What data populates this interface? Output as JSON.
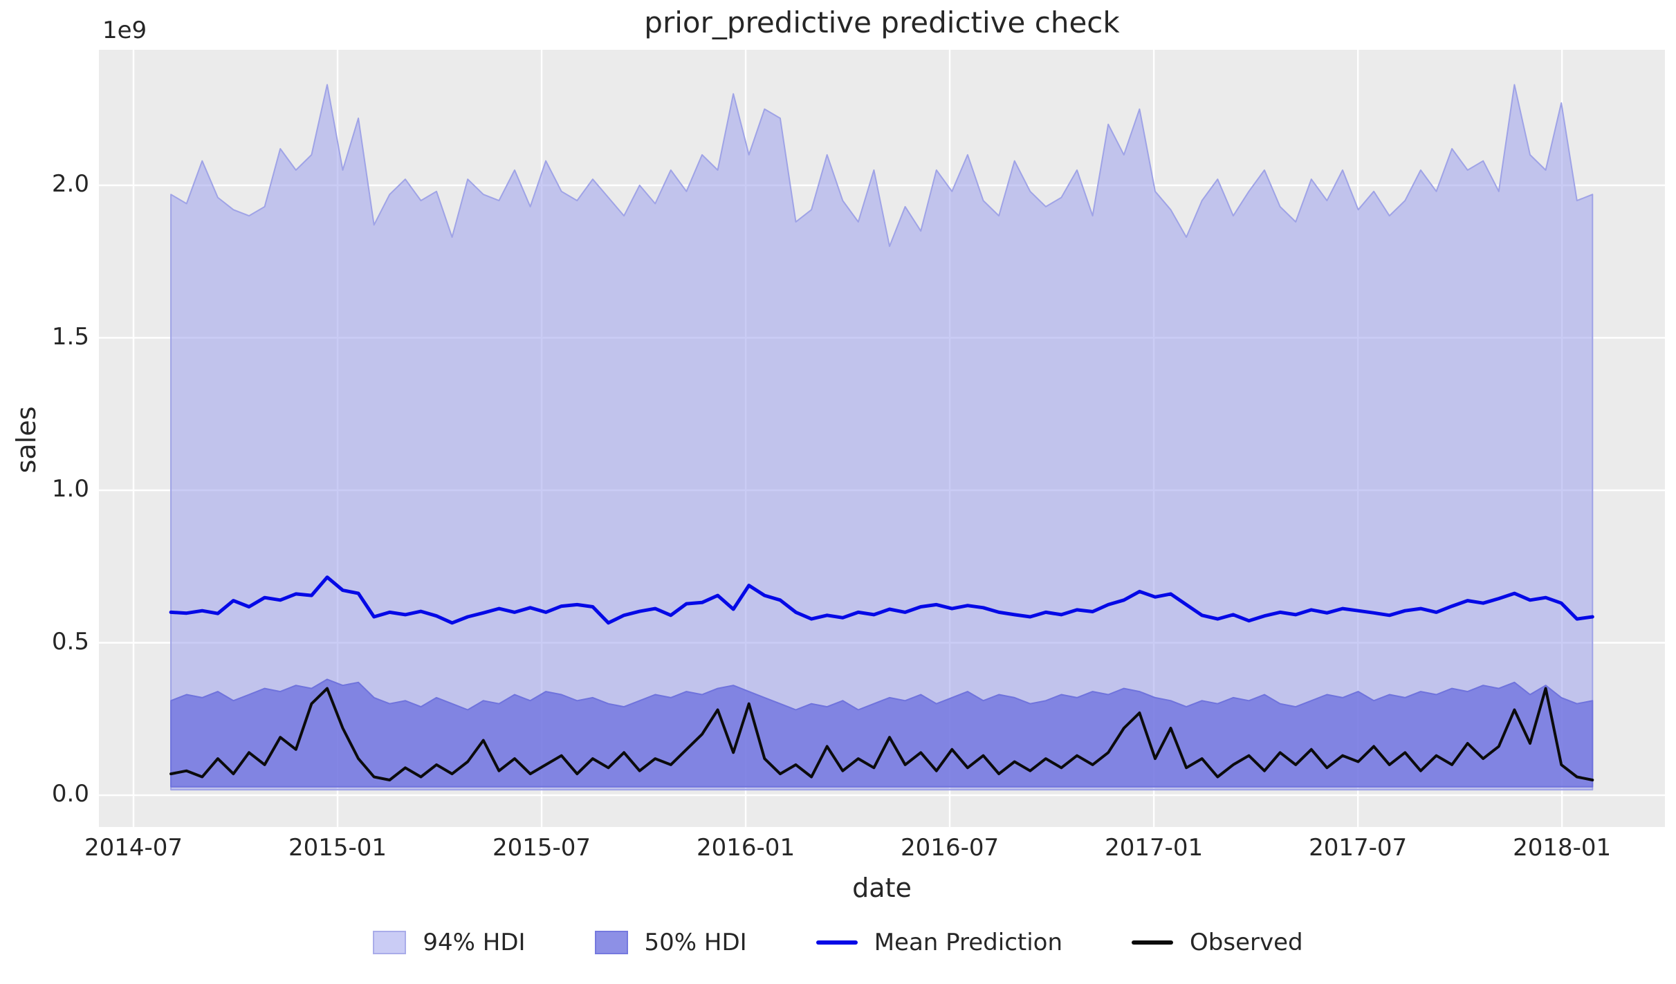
{
  "figure": {
    "title": "prior_predictive predictive check"
  },
  "axes": {
    "offset_text": "1e9",
    "ylabel": "sales",
    "xlabel": "date",
    "y_ticks": [
      "0.0",
      "0.5",
      "1.0",
      "1.5",
      "2.0"
    ],
    "x_ticks": [
      "2014-07",
      "2015-01",
      "2015-07",
      "2016-01",
      "2016-07",
      "2017-01",
      "2017-07",
      "2018-01"
    ]
  },
  "legend": {
    "items": [
      {
        "label": "94% HDI",
        "swatch": "patch",
        "fill": "rgba(159,163,237,0.55)",
        "edge": "#a9ace9"
      },
      {
        "label": "50% HDI",
        "swatch": "patch",
        "fill": "rgba(112,116,224,0.8)",
        "edge": "#7579de"
      },
      {
        "label": "Mean Prediction",
        "swatch": "line",
        "color": "#0509e6"
      },
      {
        "label": "Observed",
        "swatch": "line",
        "color": "#0b0b0b"
      }
    ]
  },
  "colors": {
    "figure_bg": "#ffffff",
    "axes_bg": "#ebebeb",
    "grid": "#ffffff",
    "hdi94_fill": "rgba(159,163,237,0.55)",
    "hdi94_edge": "#9fa3e6",
    "hdi50_fill": "rgba(112,116,224,0.8)",
    "hdi50_edge": "#6f73dc",
    "mean_line": "#0509e6",
    "observed_line": "#0b0b0b",
    "text": "#262626"
  },
  "chart_data": {
    "type": "area",
    "title": "prior_predictive predictive check",
    "xlabel": "date",
    "ylabel": "sales",
    "y_unit": "1e9",
    "ylim": [
      -0.1,
      2.44
    ],
    "y_ticks": [
      0.0,
      0.5,
      1.0,
      1.5,
      2.0
    ],
    "x_tick_labels": [
      "2014-07",
      "2015-01",
      "2015-07",
      "2016-01",
      "2016-07",
      "2017-01",
      "2017-07",
      "2018-01"
    ],
    "x_tick_months_from_2014_07": [
      0,
      6,
      12,
      18,
      24,
      30,
      36,
      42
    ],
    "x_start_date": "2014-08-03",
    "x_step_days": 14,
    "n_points": 92,
    "grid": true,
    "legend_position": "lower center",
    "series": [
      {
        "name": "94% HDI upper",
        "values": [
          1.97,
          1.94,
          2.08,
          1.96,
          1.92,
          1.9,
          1.93,
          2.12,
          2.05,
          2.1,
          2.33,
          2.05,
          2.22,
          1.87,
          1.97,
          2.02,
          1.95,
          1.98,
          1.83,
          2.02,
          1.97,
          1.95,
          2.05,
          1.93,
          2.08,
          1.98,
          1.95,
          2.02,
          1.96,
          1.9,
          2.0,
          1.94,
          2.05,
          1.98,
          2.1,
          2.05,
          2.3,
          2.1,
          2.25,
          2.22,
          1.88,
          1.92,
          2.1,
          1.95,
          1.88,
          2.05,
          1.8,
          1.93,
          1.85,
          2.05,
          1.98,
          2.1,
          1.95,
          1.9,
          2.08,
          1.98,
          1.93,
          1.96,
          2.05,
          1.9,
          2.2,
          2.1,
          2.25,
          1.98,
          1.92,
          1.83,
          1.95,
          2.02,
          1.9,
          1.98,
          2.05,
          1.93,
          1.88,
          2.02,
          1.95,
          2.05,
          1.92,
          1.98,
          1.9,
          1.95,
          2.05,
          1.98,
          2.12,
          2.05,
          2.08,
          1.98,
          2.33,
          2.1,
          2.05,
          2.27,
          1.95,
          1.97
        ]
      },
      {
        "name": "94% HDI lower",
        "constant": 0.018
      },
      {
        "name": "50% HDI upper",
        "values": [
          0.31,
          0.33,
          0.32,
          0.34,
          0.31,
          0.33,
          0.35,
          0.34,
          0.36,
          0.35,
          0.38,
          0.36,
          0.37,
          0.32,
          0.3,
          0.31,
          0.29,
          0.32,
          0.3,
          0.28,
          0.31,
          0.3,
          0.33,
          0.31,
          0.34,
          0.33,
          0.31,
          0.32,
          0.3,
          0.29,
          0.31,
          0.33,
          0.32,
          0.34,
          0.33,
          0.35,
          0.36,
          0.34,
          0.32,
          0.3,
          0.28,
          0.3,
          0.29,
          0.31,
          0.28,
          0.3,
          0.32,
          0.31,
          0.33,
          0.3,
          0.32,
          0.34,
          0.31,
          0.33,
          0.32,
          0.3,
          0.31,
          0.33,
          0.32,
          0.34,
          0.33,
          0.35,
          0.34,
          0.32,
          0.31,
          0.29,
          0.31,
          0.3,
          0.32,
          0.31,
          0.33,
          0.3,
          0.29,
          0.31,
          0.33,
          0.32,
          0.34,
          0.31,
          0.33,
          0.32,
          0.34,
          0.33,
          0.35,
          0.34,
          0.36,
          0.35,
          0.37,
          0.33,
          0.36,
          0.32,
          0.3,
          0.31
        ]
      },
      {
        "name": "50% HDI lower",
        "constant": 0.028
      },
      {
        "name": "Mean Prediction",
        "values": [
          0.6,
          0.597,
          0.605,
          0.596,
          0.638,
          0.618,
          0.648,
          0.64,
          0.66,
          0.655,
          0.715,
          0.672,
          0.662,
          0.585,
          0.6,
          0.592,
          0.603,
          0.588,
          0.565,
          0.585,
          0.598,
          0.612,
          0.6,
          0.615,
          0.6,
          0.62,
          0.625,
          0.618,
          0.565,
          0.59,
          0.603,
          0.612,
          0.59,
          0.628,
          0.632,
          0.655,
          0.61,
          0.688,
          0.655,
          0.64,
          0.6,
          0.578,
          0.59,
          0.582,
          0.6,
          0.592,
          0.61,
          0.6,
          0.618,
          0.625,
          0.612,
          0.622,
          0.615,
          0.6,
          0.592,
          0.585,
          0.6,
          0.592,
          0.608,
          0.602,
          0.625,
          0.64,
          0.668,
          0.65,
          0.66,
          0.625,
          0.59,
          0.578,
          0.592,
          0.572,
          0.588,
          0.6,
          0.592,
          0.608,
          0.598,
          0.612,
          0.605,
          0.598,
          0.59,
          0.605,
          0.612,
          0.6,
          0.62,
          0.638,
          0.63,
          0.645,
          0.662,
          0.64,
          0.648,
          0.63,
          0.578,
          0.585
        ]
      },
      {
        "name": "Observed",
        "values": [
          0.07,
          0.08,
          0.06,
          0.12,
          0.07,
          0.14,
          0.1,
          0.19,
          0.15,
          0.3,
          0.35,
          0.22,
          0.12,
          0.06,
          0.05,
          0.09,
          0.06,
          0.1,
          0.07,
          0.11,
          0.18,
          0.08,
          0.12,
          0.07,
          0.1,
          0.13,
          0.07,
          0.12,
          0.09,
          0.14,
          0.08,
          0.12,
          0.1,
          0.15,
          0.2,
          0.28,
          0.14,
          0.3,
          0.12,
          0.07,
          0.1,
          0.06,
          0.16,
          0.08,
          0.12,
          0.09,
          0.19,
          0.1,
          0.14,
          0.08,
          0.15,
          0.09,
          0.13,
          0.07,
          0.11,
          0.08,
          0.12,
          0.09,
          0.13,
          0.1,
          0.14,
          0.22,
          0.27,
          0.12,
          0.22,
          0.09,
          0.12,
          0.06,
          0.1,
          0.13,
          0.08,
          0.14,
          0.1,
          0.15,
          0.09,
          0.13,
          0.11,
          0.16,
          0.1,
          0.14,
          0.08,
          0.13,
          0.1,
          0.17,
          0.12,
          0.16,
          0.28,
          0.17,
          0.35,
          0.1,
          0.06,
          0.05
        ]
      }
    ]
  }
}
